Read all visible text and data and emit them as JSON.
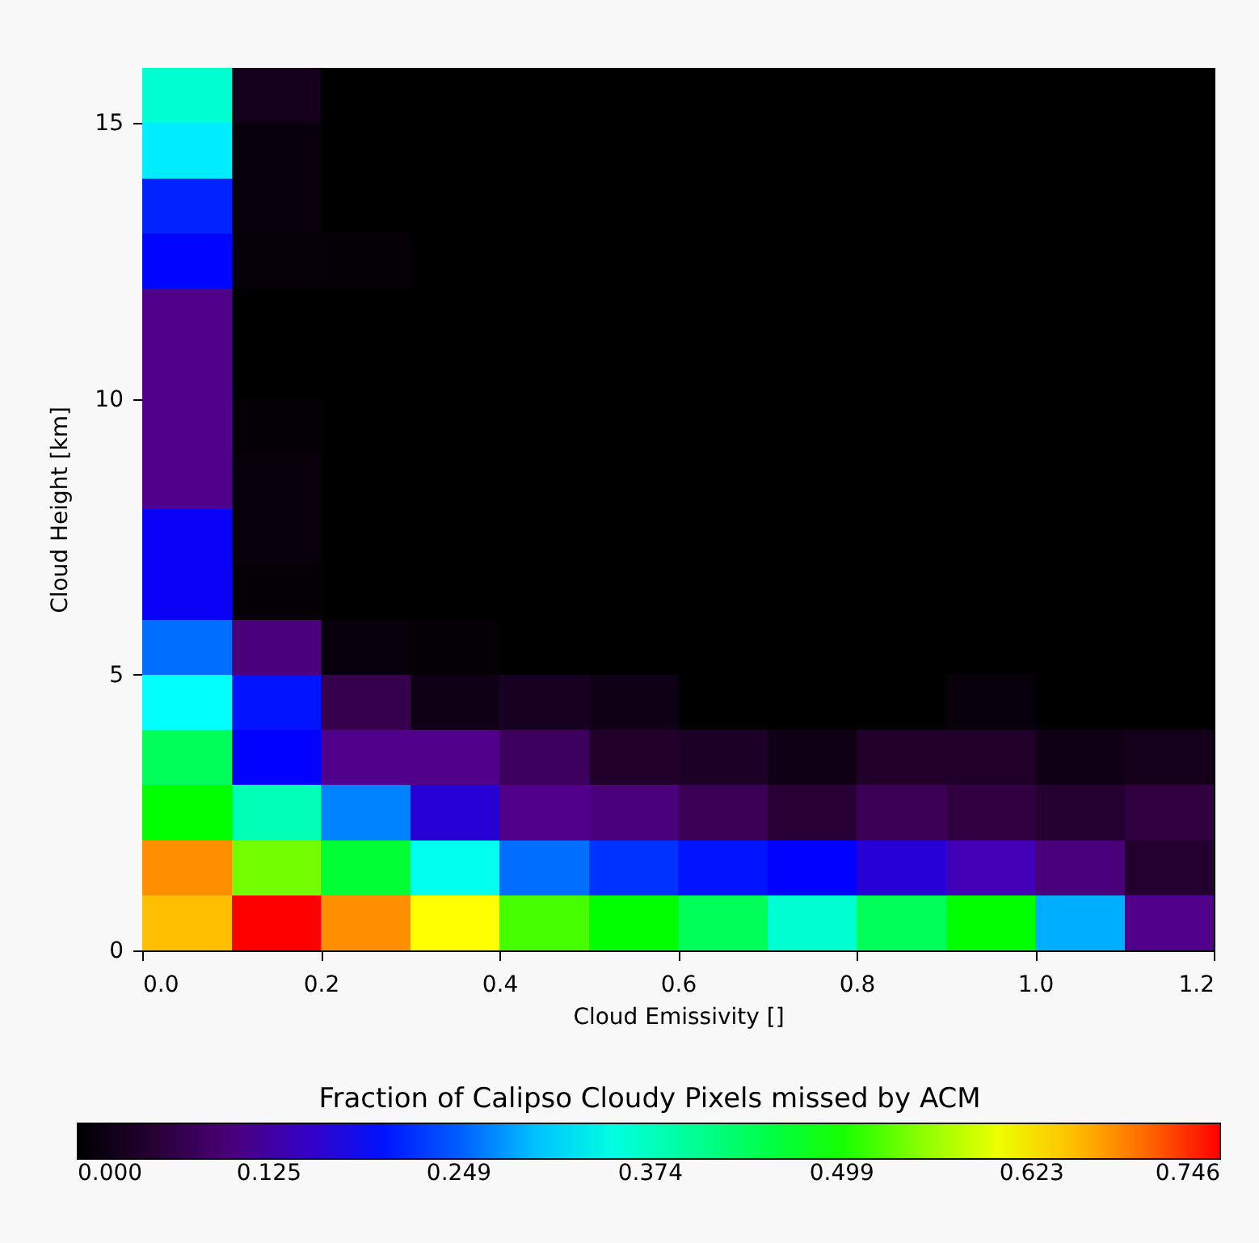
{
  "chart_data": {
    "type": "heatmap",
    "xlabel": "Cloud Emissivity []",
    "ylabel": "Cloud Height [km]",
    "clabel": "Fraction of Calipso Cloudy Pixels missed by ACM",
    "x": [
      0.05,
      0.15,
      0.25,
      0.35,
      0.45,
      0.55,
      0.65,
      0.75,
      0.85,
      0.95,
      1.05,
      1.15
    ],
    "y": [
      15.5,
      14.5,
      13.5,
      12.5,
      11.5,
      10.5,
      9.5,
      8.5,
      7.5,
      6.5,
      5.5,
      4.5,
      3.5,
      2.5,
      1.5,
      0.5
    ],
    "xlim": [
      0,
      1.2
    ],
    "ylim": [
      0,
      16
    ],
    "xticks": [
      {
        "value": 0,
        "label": "0.0"
      },
      0.2,
      0.4,
      0.6,
      0.8,
      {
        "value": 1,
        "label": "1.0"
      },
      1.2
    ],
    "yticks": [
      0,
      5,
      10,
      15
    ],
    "clim": [
      0,
      0.746
    ],
    "cticks": [
      {
        "value": 0,
        "label": "0.000"
      },
      0.125,
      0.249,
      0.374,
      0.499,
      0.623,
      0.746
    ],
    "cells": [
      [
        0.36,
        0.025,
        0,
        0,
        0,
        0,
        0,
        0,
        0,
        0,
        0,
        0
      ],
      [
        0.32,
        0.01,
        0,
        0,
        0,
        0,
        0,
        0,
        0,
        0,
        0,
        0
      ],
      [
        0.21,
        0.01,
        0,
        0,
        0,
        0,
        0,
        0,
        0,
        0,
        0,
        0
      ],
      [
        0.19,
        0.008,
        0.005,
        0,
        0,
        0,
        0,
        0,
        0,
        0,
        0,
        0
      ],
      [
        0.11,
        0,
        0,
        0,
        0,
        0,
        0,
        0,
        0,
        0,
        0,
        0
      ],
      [
        0.11,
        0,
        0,
        0,
        0,
        0,
        0,
        0,
        0,
        0,
        0,
        0
      ],
      [
        0.11,
        0.005,
        0,
        0,
        0,
        0,
        0,
        0,
        0,
        0,
        0,
        0
      ],
      [
        0.11,
        0.01,
        0,
        0,
        0,
        0,
        0,
        0,
        0,
        0,
        0,
        0
      ],
      [
        0.18,
        0.01,
        0,
        0,
        0,
        0,
        0,
        0,
        0,
        0,
        0,
        0
      ],
      [
        0.18,
        0.005,
        0,
        0,
        0,
        0,
        0,
        0,
        0,
        0,
        0,
        0
      ],
      [
        0.26,
        0.1,
        0.01,
        0.005,
        0,
        0,
        0,
        0,
        0,
        0,
        0,
        0
      ],
      [
        0.33,
        0.2,
        0.07,
        0.02,
        0.03,
        0.02,
        0,
        0,
        0,
        0.01,
        0,
        0
      ],
      [
        0.44,
        0.187,
        0.11,
        0.11,
        0.08,
        0.04,
        0.035,
        0.02,
        0.04,
        0.04,
        0.02,
        0.025
      ],
      [
        0.49,
        0.38,
        0.27,
        0.16,
        0.11,
        0.1,
        0.075,
        0.05,
        0.075,
        0.06,
        0.045,
        0.06
      ],
      [
        0.68,
        0.54,
        0.46,
        0.34,
        0.26,
        0.22,
        0.2,
        0.187,
        0.16,
        0.14,
        0.1,
        0.045
      ],
      [
        0.65,
        0.746,
        0.68,
        0.61,
        0.52,
        0.49,
        0.44,
        0.36,
        0.44,
        0.49,
        0.29,
        0.11
      ]
    ]
  }
}
